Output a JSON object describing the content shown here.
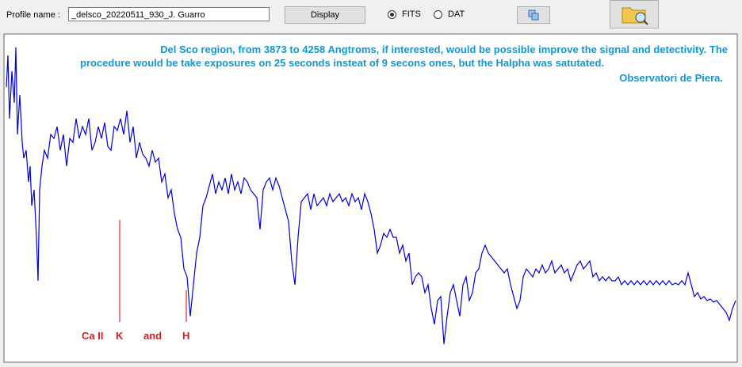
{
  "toolbar": {
    "profile_label": "Profile name :",
    "profile_value": "_delsco_20220511_930_J. Guarro",
    "display_button": "Display",
    "format_options": [
      "FITS",
      "DAT"
    ]
  },
  "plot": {
    "annotation": [
      "Del Sco region, from  3873 to 4258 Angtroms, if interested, would be possible improve the signal and detectivity. The",
      "procedure would be take exposures on 25 seconds insteat of 9 secons ones, but the Halpha was satutated.",
      "Observatori de Piera."
    ],
    "line_labels": [
      "Ca II",
      "K",
      "and",
      "H"
    ]
  }
}
